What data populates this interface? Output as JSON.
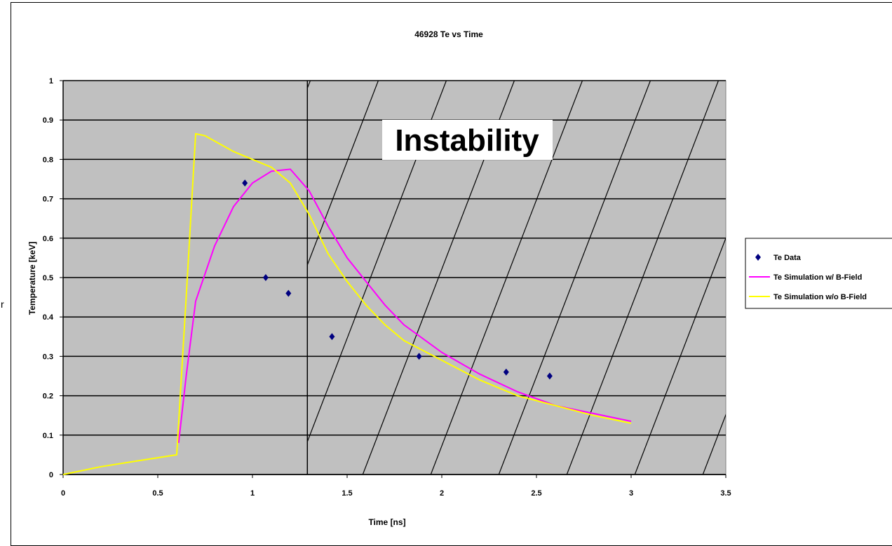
{
  "chart_data": {
    "type": "scatter",
    "title": "46928 Te vs Time",
    "xlabel": "Time [ns]",
    "ylabel": "Temperature [keV]",
    "xlim": [
      0,
      3.5
    ],
    "ylim": [
      0,
      1
    ],
    "x_ticks": [
      "0",
      "0.5",
      "1",
      "1.5",
      "2",
      "2.5",
      "3",
      "3.5"
    ],
    "y_ticks": [
      "0",
      "0.1",
      "0.2",
      "0.3",
      "0.4",
      "0.5",
      "0.6",
      "0.7",
      "0.8",
      "0.9",
      "1"
    ],
    "grid": "horizontal",
    "legend_position": "right",
    "annotation": "Instability",
    "instability_start_x": 1.29,
    "series": [
      {
        "name": "Te Data",
        "kind": "markers",
        "color": "#000080",
        "points": [
          [
            0.96,
            0.74
          ],
          [
            1.07,
            0.5
          ],
          [
            1.19,
            0.46
          ],
          [
            1.42,
            0.35
          ],
          [
            1.88,
            0.3
          ],
          [
            2.34,
            0.26
          ],
          [
            2.57,
            0.25
          ]
        ]
      },
      {
        "name": "Te Simulation w/ B-Field",
        "kind": "line",
        "color": "#ff00ff",
        "points": [
          [
            0.61,
            0.08
          ],
          [
            0.65,
            0.25
          ],
          [
            0.7,
            0.44
          ],
          [
            0.8,
            0.58
          ],
          [
            0.9,
            0.68
          ],
          [
            1.0,
            0.74
          ],
          [
            1.1,
            0.77
          ],
          [
            1.2,
            0.775
          ],
          [
            1.3,
            0.72
          ],
          [
            1.4,
            0.63
          ],
          [
            1.5,
            0.55
          ],
          [
            1.6,
            0.49
          ],
          [
            1.7,
            0.43
          ],
          [
            1.8,
            0.38
          ],
          [
            2.0,
            0.31
          ],
          [
            2.2,
            0.255
          ],
          [
            2.4,
            0.21
          ],
          [
            2.6,
            0.175
          ],
          [
            2.8,
            0.155
          ],
          [
            3.0,
            0.135
          ]
        ]
      },
      {
        "name": "Te Simulation w/o B-Field",
        "kind": "line",
        "color": "#ffff00",
        "points": [
          [
            0.0,
            0.0
          ],
          [
            0.2,
            0.02
          ],
          [
            0.4,
            0.035
          ],
          [
            0.6,
            0.05
          ],
          [
            0.65,
            0.45
          ],
          [
            0.7,
            0.865
          ],
          [
            0.75,
            0.86
          ],
          [
            0.9,
            0.82
          ],
          [
            1.0,
            0.8
          ],
          [
            1.1,
            0.78
          ],
          [
            1.2,
            0.74
          ],
          [
            1.3,
            0.66
          ],
          [
            1.4,
            0.56
          ],
          [
            1.5,
            0.49
          ],
          [
            1.6,
            0.43
          ],
          [
            1.7,
            0.38
          ],
          [
            1.8,
            0.34
          ],
          [
            2.0,
            0.29
          ],
          [
            2.2,
            0.24
          ],
          [
            2.4,
            0.2
          ],
          [
            2.6,
            0.175
          ],
          [
            2.8,
            0.15
          ],
          [
            3.0,
            0.13
          ]
        ]
      }
    ]
  },
  "page": {
    "stray_char": "r"
  }
}
